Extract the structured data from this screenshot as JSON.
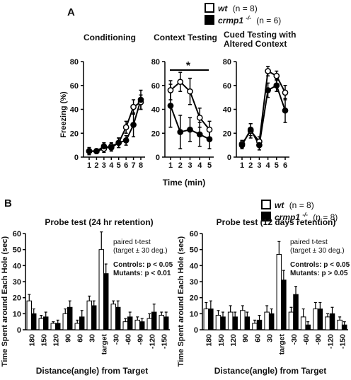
{
  "panel_labels": {
    "a": "A",
    "b": "B"
  },
  "legend_a": {
    "wt": {
      "name": "wt",
      "n": "(n = 8)"
    },
    "mut": {
      "name": "crmp1",
      "sup": "-/-",
      "n": "(n = 6)"
    }
  },
  "legend_b": {
    "wt": {
      "name": "wt",
      "n": "(n = 8)"
    },
    "mut": {
      "name": "crmp1",
      "sup": "-/-",
      "n": "(n = 8)"
    }
  },
  "titles_a": {
    "cond": "Conditioning",
    "ctx": "Context Testing",
    "cued1": "Cued Testing with",
    "cued2": "Altered Context"
  },
  "ylabel_a": "Freezing (%)",
  "xlabel_a": "Time (min)",
  "star": "*",
  "ylabel_b": "Time Spent around Each Hole (sec)",
  "xlabel_b": "Distance(angle) from Target",
  "colors": {
    "wt_fill": "#ffffff",
    "mut_fill": "#000000",
    "stroke": "#000000"
  },
  "chart_data": [
    {
      "type": "line",
      "id": "conditioning",
      "title": "Conditioning",
      "ylabel": "Freezing (%)",
      "xlabel": "",
      "ylim": [
        0,
        80
      ],
      "yticks": [
        0,
        20,
        40,
        60,
        80
      ],
      "x": [
        1,
        2,
        3,
        4,
        5,
        6,
        7,
        8
      ],
      "series": [
        {
          "name": "wt (n = 8)",
          "values": [
            5,
            5,
            7,
            9,
            12,
            25,
            42,
            46
          ],
          "err": [
            2,
            2,
            3,
            3,
            4,
            5,
            6,
            6
          ]
        },
        {
          "name": "crmp1-/- (n = 6)",
          "values": [
            5,
            5,
            9,
            8,
            12,
            14,
            27,
            48
          ],
          "err": [
            3,
            2,
            3,
            3,
            4,
            4,
            10,
            8
          ]
        }
      ]
    },
    {
      "type": "line",
      "id": "context",
      "title": "Context Testing",
      "xlabel": "Time (min)",
      "ylim": [
        0,
        80
      ],
      "yticks": [
        0,
        20,
        40,
        60,
        80
      ],
      "x": [
        1,
        2,
        3,
        4,
        5
      ],
      "annotation": "*",
      "series": [
        {
          "name": "wt (n = 8)",
          "values": [
            56,
            63,
            55,
            33,
            23
          ],
          "err": [
            8,
            8,
            11,
            8,
            7
          ]
        },
        {
          "name": "crmp1-/- (n = 6)",
          "values": [
            43,
            21,
            23,
            19,
            15
          ],
          "err": [
            18,
            14,
            10,
            10,
            8
          ]
        }
      ]
    },
    {
      "type": "line",
      "id": "cued",
      "title": "Cued Testing with Altered Context",
      "xlabel": "",
      "ylim": [
        0,
        80
      ],
      "yticks": [
        0,
        20,
        40,
        60,
        80
      ],
      "x": [
        1,
        2,
        3,
        4,
        5,
        6
      ],
      "series": [
        {
          "name": "wt (n = 8)",
          "values": [
            11,
            22,
            13,
            72,
            68,
            54
          ],
          "err": [
            3,
            6,
            4,
            4,
            4,
            6
          ]
        },
        {
          "name": "crmp1-/- (n = 6)",
          "values": [
            10,
            23,
            10,
            56,
            60,
            39
          ],
          "err": [
            3,
            5,
            4,
            6,
            5,
            10
          ]
        }
      ]
    },
    {
      "type": "bar",
      "id": "probe24",
      "title": "Probe test (24 hr retention)",
      "ylabel": "Time Spent around Each Hole (sec)",
      "xlabel": "Distance(angle) from Target",
      "ylim": [
        0,
        60
      ],
      "yticks": [
        0,
        10,
        20,
        30,
        40,
        50,
        60
      ],
      "categories": [
        "180",
        "150",
        "120",
        "90",
        "60",
        "30",
        "target",
        "-30",
        "-60",
        "-90",
        "-120",
        "-150"
      ],
      "annotations": [
        "paired t-test",
        "(target ± 30 deg.)",
        "Controls: p < 0.05",
        "Mutants: p < 0.01"
      ],
      "series": [
        {
          "name": "wt (n = 8)",
          "values": [
            18,
            7,
            4,
            10,
            4,
            18,
            50,
            16,
            5,
            6,
            7,
            9
          ],
          "err": [
            4,
            2,
            1,
            3,
            2,
            3,
            11,
            2,
            2,
            2,
            3,
            2
          ]
        },
        {
          "name": "crmp1-/- (n = 8)",
          "values": [
            10,
            8,
            4,
            14,
            8,
            15,
            35,
            14,
            8,
            5,
            11,
            8
          ],
          "err": [
            3,
            3,
            2,
            4,
            4,
            3,
            6,
            4,
            3,
            2,
            5,
            3
          ]
        }
      ]
    },
    {
      "type": "bar",
      "id": "probe12",
      "title": "Probe test (12 days retention)",
      "ylabel": "Time Spent around Each Hole (sec)",
      "xlabel": "Distance(angle) from Target",
      "ylim": [
        0,
        60
      ],
      "yticks": [
        0,
        10,
        20,
        30,
        40,
        50,
        60
      ],
      "categories": [
        "180",
        "150",
        "120",
        "90",
        "60",
        "30",
        "target",
        "-30",
        "-60",
        "-90",
        "-120",
        "-150"
      ],
      "annotations": [
        "paired t-test",
        "(target ± 30 deg.)",
        "Controls: p < 0.05",
        "Mutants: p > 0.05"
      ],
      "series": [
        {
          "name": "wt (n = 8)",
          "values": [
            13,
            9,
            11,
            12,
            4,
            11,
            47,
            11,
            8,
            13,
            8,
            6
          ],
          "err": [
            4,
            3,
            4,
            3,
            2,
            4,
            8,
            3,
            5,
            4,
            2,
            2
          ]
        },
        {
          "name": "crmp1-/- (n = 8)",
          "values": [
            13,
            8,
            8,
            8,
            6,
            10,
            31,
            22,
            3,
            13,
            10,
            3
          ],
          "err": [
            5,
            3,
            3,
            3,
            3,
            3,
            6,
            5,
            2,
            4,
            4,
            2
          ]
        }
      ]
    }
  ]
}
